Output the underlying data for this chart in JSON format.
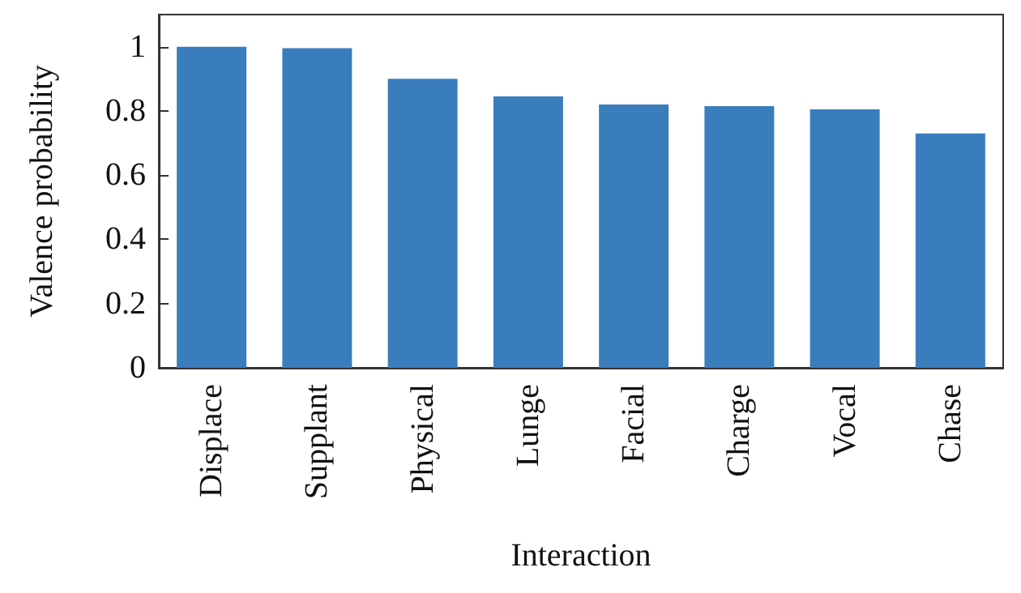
{
  "chart_data": {
    "type": "bar",
    "xlabel": "Interaction",
    "ylabel": "Valence probability",
    "categories": [
      "Displace",
      "Supplant",
      "Physical",
      "Lunge",
      "Facial",
      "Charge",
      "Vocal",
      "Chase"
    ],
    "values": [
      1.0,
      0.995,
      0.9,
      0.845,
      0.82,
      0.815,
      0.805,
      0.73
    ],
    "color": "#3a7dbd",
    "ylim": [
      0,
      1.1
    ],
    "yticks": [
      0,
      0.2,
      0.4,
      0.6,
      0.8,
      1
    ],
    "grid": false
  }
}
